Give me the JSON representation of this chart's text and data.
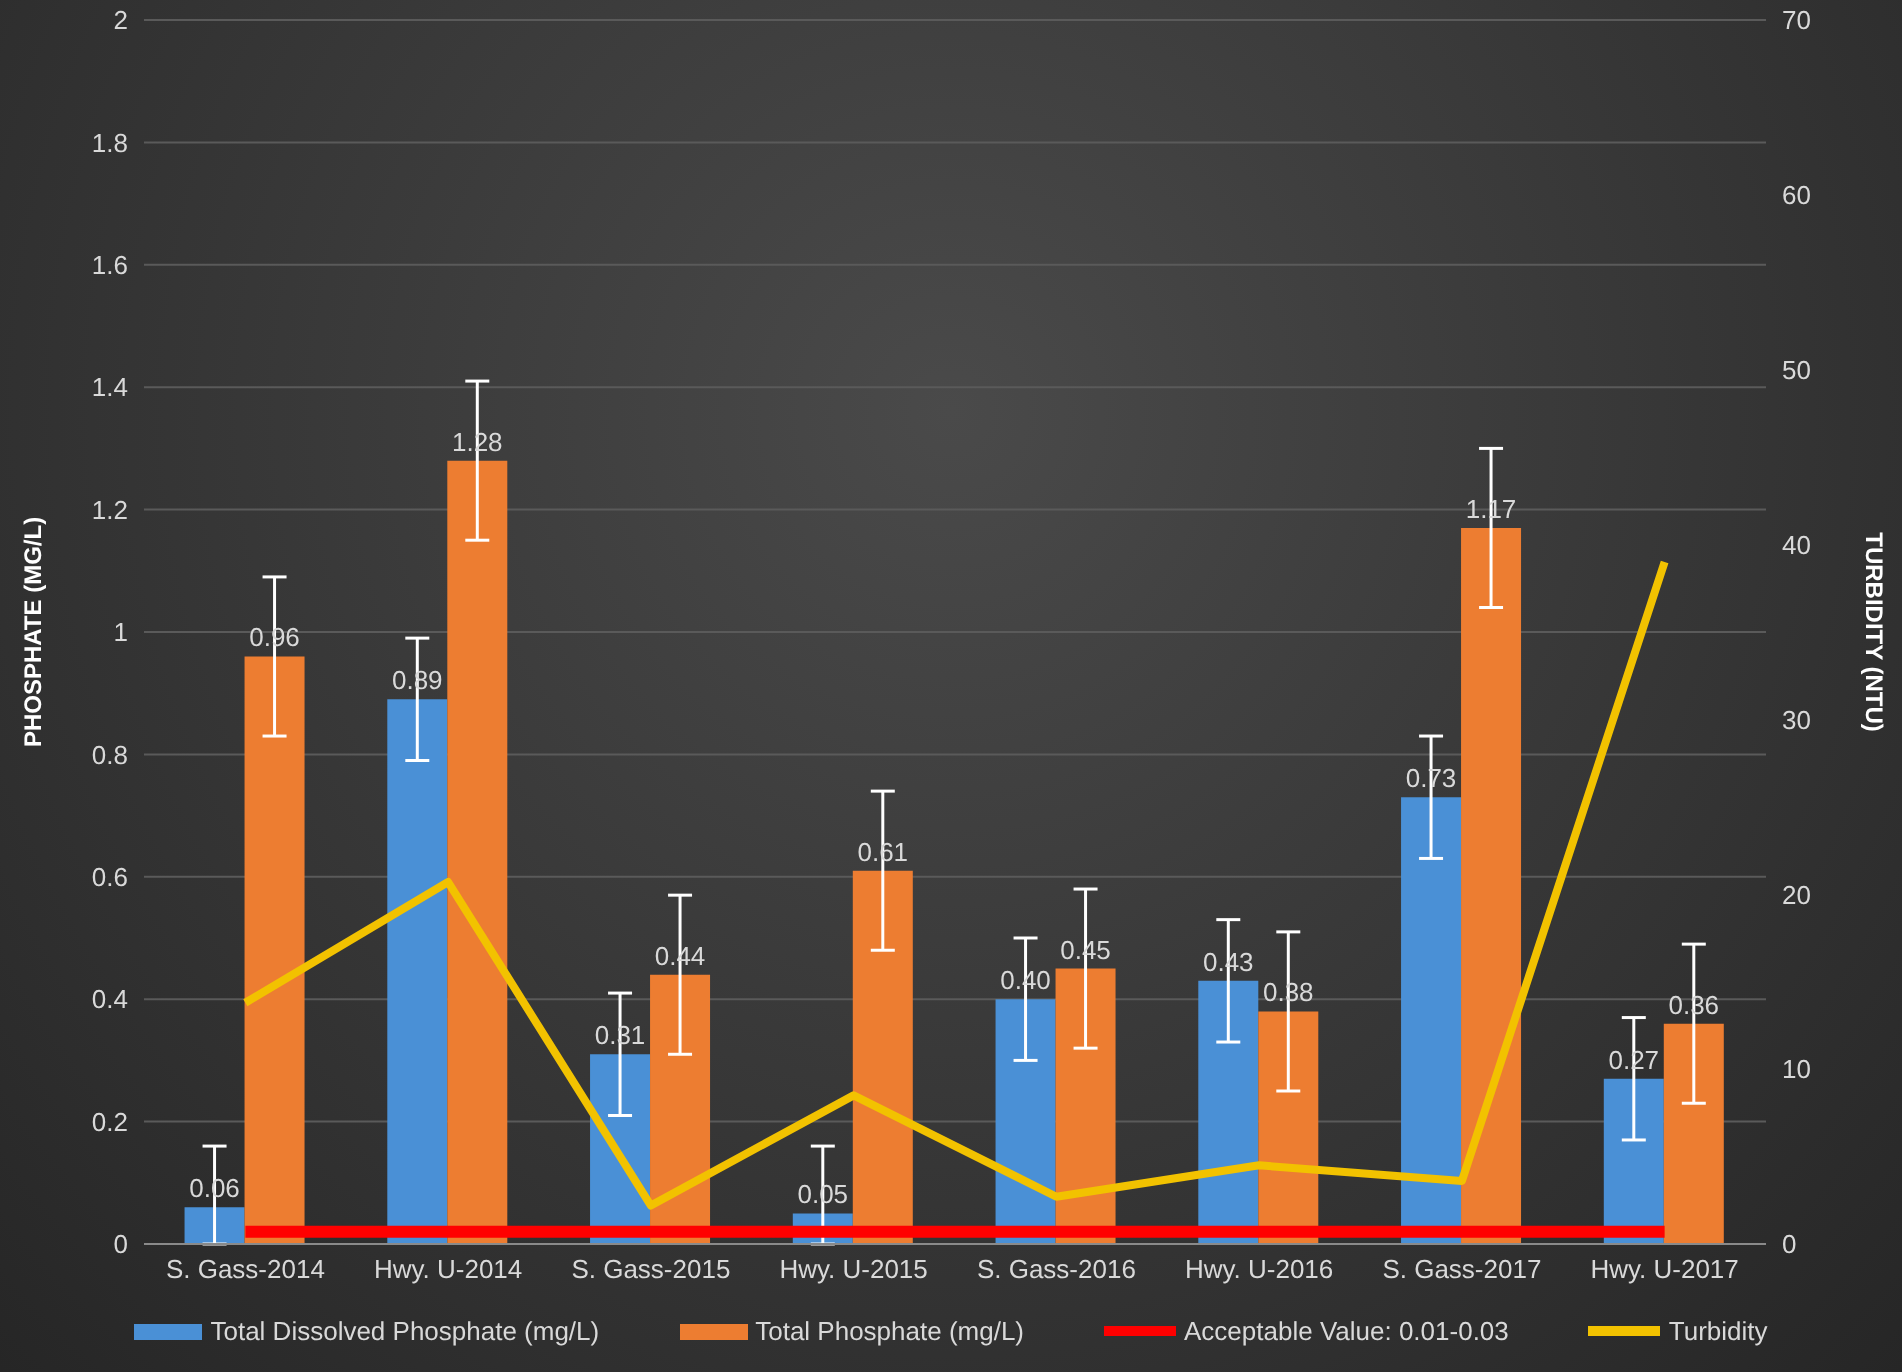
{
  "chart_data": {
    "type": "bar",
    "ylabel": "PHOSPHATE (MG/L)",
    "y2label": "TURBIDITY (NTU)",
    "categories": [
      "S. Gass-2014",
      "Hwy. U-2014",
      "S. Gass-2015",
      "Hwy. U-2015",
      "S. Gass-2016",
      "Hwy. U-2016",
      "S. Gass-2017",
      "Hwy. U-2017"
    ],
    "series": [
      {
        "name": "Total Dissolved Phosphate (mg/L)",
        "color": "#4a90d6",
        "values": [
          0.06,
          0.89,
          0.31,
          0.05,
          0.4,
          0.43,
          0.73,
          0.27
        ],
        "errors": [
          [
            0,
            0.16
          ],
          0.1,
          0.1,
          [
            0,
            0.16
          ],
          0.1,
          0.1,
          0.1,
          0.1
        ],
        "value_labels": [
          "0.06",
          "0.89",
          "0.31",
          "0.05",
          "0.40",
          "0.43",
          "0.73",
          "0.27"
        ]
      },
      {
        "name": "Total Phosphate (mg/L)",
        "color": "#ed7d31",
        "values": [
          0.96,
          1.28,
          0.44,
          0.61,
          0.45,
          0.38,
          1.17,
          0.36
        ],
        "errors": [
          0.13,
          0.13,
          0.13,
          0.13,
          0.13,
          0.13,
          0.13,
          0.13
        ],
        "value_labels": [
          "0.96",
          "1.28",
          "0.44",
          "0.61",
          "0.45",
          "0.38",
          "1.17",
          "0.36"
        ]
      },
      {
        "name": "Acceptable Value: 0.01-0.03",
        "type": "line",
        "color": "#ff0000",
        "values": [
          0.02,
          0.02,
          0.02,
          0.02,
          0.02,
          0.02,
          0.02,
          0.02
        ]
      },
      {
        "name": "Turbidity",
        "type": "line",
        "axis": "y2",
        "color": "#f2c200",
        "values": [
          13.8,
          20.7,
          2.2,
          8.5,
          2.7,
          4.5,
          3.6,
          39
        ]
      }
    ],
    "ylim": [
      0,
      2
    ],
    "yticks": [
      0,
      0.2,
      0.4,
      0.6,
      0.8,
      1,
      1.2,
      1.4,
      1.6,
      1.8,
      2
    ],
    "y2lim": [
      0,
      70
    ],
    "y2ticks": [
      0,
      10,
      20,
      30,
      40,
      50,
      60,
      70
    ],
    "grid": "y",
    "legend": "bottom",
    "marker": "none"
  }
}
